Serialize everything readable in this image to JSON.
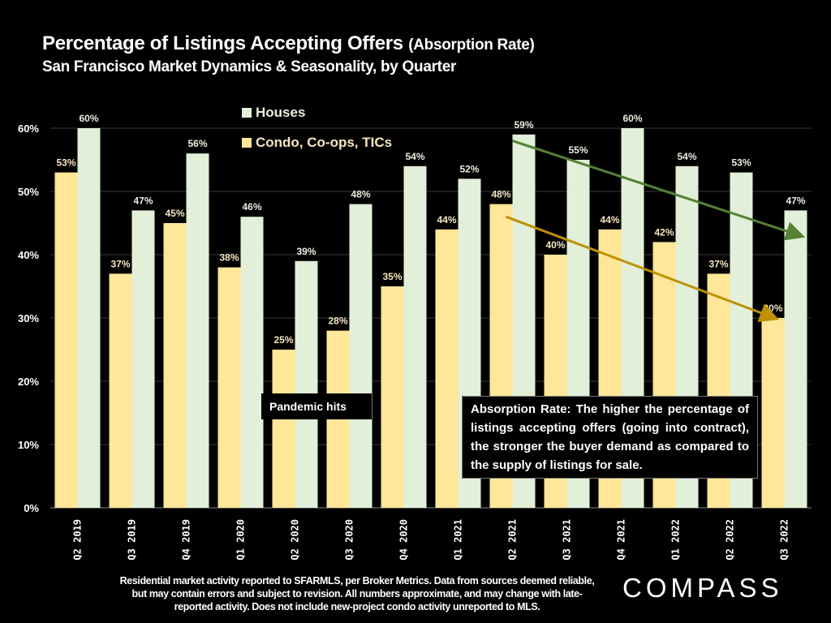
{
  "header": {
    "title": "Percentage of Listings Accepting Offers",
    "title_paren": "(Absorption Rate)",
    "subtitle": "San Francisco Market Dynamics & Seasonality, by Quarter"
  },
  "annotations": {
    "pandemic": "Pandemic hits",
    "info": "Absorption Rate: The higher the percentage of listings accepting offers (going into contract), the stronger the buyer demand as compared to the supply of listings for sale."
  },
  "footer": {
    "note": "Residential market activity reported to SFARMLS, per Broker Metrics. Data from sources deemed reliable, but may contain errors and subject to revision. All numbers approximate, and may change with late-reported activity. Does not include new-project condo activity unreported to MLS.",
    "logo": "COMPASS"
  },
  "colors": {
    "houses": "#e2efd9",
    "condo": "#ffe699",
    "houses_label": "#e8f0e0",
    "condo_label": "#f5e6c0",
    "trend_houses": "#538135",
    "trend_condo": "#bf9000",
    "grid": "#3a3a3a"
  },
  "chart_data": {
    "type": "bar",
    "title": "Percentage of Listings Accepting Offers (Absorption Rate)",
    "subtitle": "San Francisco Market Dynamics & Seasonality, by Quarter",
    "xlabel": "",
    "ylabel": "",
    "ylim": [
      0,
      60
    ],
    "yticks": [
      "0%",
      "10%",
      "20%",
      "30%",
      "40%",
      "50%",
      "60%"
    ],
    "grid": true,
    "legend_position": "top-center",
    "categories": [
      "Q2 2019",
      "Q3 2019",
      "Q4 2019",
      "Q1 2020",
      "Q2 2020",
      "Q3 2020",
      "Q4 2020",
      "Q1 2021",
      "Q2 2021",
      "Q3 2021",
      "Q4 2021",
      "Q1 2022",
      "Q2 2022",
      "Q3 2022"
    ],
    "series": [
      {
        "name": "Condo, Co-ops, TICs",
        "values": [
          53,
          37,
          45,
          38,
          25,
          28,
          35,
          44,
          48,
          40,
          44,
          42,
          37,
          30
        ],
        "labels": [
          "53%",
          "37%",
          "45%",
          "38%",
          "25%",
          "28%",
          "35%",
          "44%",
          "48%",
          "40%",
          "44%",
          "42%",
          "37%",
          "30%"
        ]
      },
      {
        "name": "Houses",
        "values": [
          60,
          47,
          56,
          46,
          39,
          48,
          54,
          52,
          59,
          55,
          60,
          54,
          53,
          47
        ],
        "labels": [
          "60%",
          "47%",
          "56%",
          "46%",
          "39%",
          "48%",
          "54%",
          "52%",
          "59%",
          "55%",
          "60%",
          "54%",
          "53%",
          "47%"
        ]
      }
    ],
    "trend_arrows": [
      {
        "series": "Houses",
        "from": {
          "category": "Q2 2021",
          "value": 58
        },
        "to": {
          "category": "Q3 2022",
          "value": 43
        }
      },
      {
        "series": "Condo, Co-ops, TICs",
        "from": {
          "category": "Q2 2021",
          "value": 46
        },
        "to": {
          "category": "Q3 2022",
          "value": 30
        }
      }
    ]
  }
}
